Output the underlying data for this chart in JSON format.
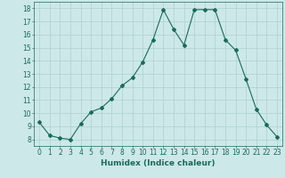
{
  "x": [
    0,
    1,
    2,
    3,
    4,
    5,
    6,
    7,
    8,
    9,
    10,
    11,
    12,
    13,
    14,
    15,
    16,
    17,
    18,
    19,
    20,
    21,
    22,
    23
  ],
  "y": [
    9.3,
    8.3,
    8.1,
    8.0,
    9.2,
    10.1,
    10.4,
    11.1,
    12.1,
    12.7,
    13.9,
    15.6,
    17.9,
    16.4,
    15.2,
    17.9,
    17.9,
    17.9,
    15.6,
    14.8,
    12.6,
    10.3,
    9.1,
    8.2
  ],
  "line_color": "#1a6b5a",
  "marker": "D",
  "marker_size": 2,
  "bg_color": "#cce8e8",
  "grid_color": "#afd0d0",
  "xlabel": "Humidex (Indice chaleur)",
  "xlim": [
    -0.5,
    23.5
  ],
  "ylim": [
    7.5,
    18.5
  ],
  "yticks": [
    8,
    9,
    10,
    11,
    12,
    13,
    14,
    15,
    16,
    17,
    18
  ],
  "xticks": [
    0,
    1,
    2,
    3,
    4,
    5,
    6,
    7,
    8,
    9,
    10,
    11,
    12,
    13,
    14,
    15,
    16,
    17,
    18,
    19,
    20,
    21,
    22,
    23
  ],
  "tick_color": "#1a6b5a",
  "label_fontsize": 6.5,
  "tick_fontsize": 5.5,
  "linewidth": 0.8
}
